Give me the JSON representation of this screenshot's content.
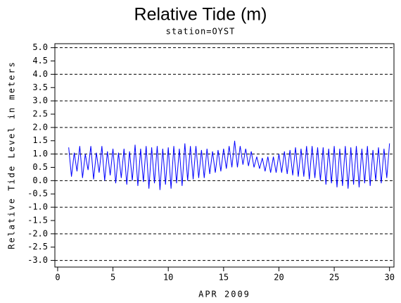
{
  "chart_data": {
    "type": "line",
    "title": "Relative Tide (m)",
    "subtitle": "station=OYST",
    "x_label": "APR 2009",
    "y_label": "Relative Tide Level in meters",
    "xlim": [
      -0.25,
      30.4
    ],
    "xticks": [
      0,
      5,
      10,
      15,
      20,
      25,
      30
    ],
    "ylim": [
      -3.25,
      5.15
    ],
    "yticks": [
      {
        "value": -3,
        "label": "-3.0"
      },
      -2.5,
      {
        "value": -2,
        "label": "-2.0"
      },
      -1.5,
      {
        "value": -1,
        "label": "-1.0"
      },
      -0.5,
      {
        "value": 0,
        "label": "0.0"
      },
      0.5,
      {
        "value": 1,
        "label": "1.0"
      },
      1.5,
      {
        "value": 2,
        "label": "2.0"
      },
      2.5,
      {
        "value": 3,
        "label": "3.0"
      },
      3.5,
      {
        "value": 4,
        "label": "4.0"
      },
      4.5,
      {
        "value": 5,
        "label": "5.0"
      }
    ],
    "grid": true,
    "x": [
      1,
      1.25,
      1.5,
      1.75,
      2,
      2.25,
      2.5,
      2.75,
      3,
      3.25,
      3.5,
      3.75,
      4,
      4.25,
      4.5,
      4.75,
      5,
      5.25,
      5.5,
      5.75,
      6,
      6.25,
      6.5,
      6.75,
      7,
      7.25,
      7.5,
      7.75,
      8,
      8.25,
      8.5,
      8.75,
      9,
      9.25,
      9.5,
      9.75,
      10,
      10.25,
      10.5,
      10.75,
      11,
      11.25,
      11.5,
      11.75,
      12,
      12.25,
      12.5,
      12.75,
      13,
      13.25,
      13.5,
      13.75,
      14,
      14.25,
      14.5,
      14.75,
      15,
      15.25,
      15.5,
      15.75,
      16,
      16.25,
      16.5,
      16.75,
      17,
      17.25,
      17.5,
      17.75,
      18,
      18.25,
      18.5,
      18.75,
      19,
      19.25,
      19.5,
      19.75,
      20,
      20.25,
      20.5,
      20.75,
      21,
      21.25,
      21.5,
      21.75,
      22,
      22.25,
      22.5,
      22.75,
      23,
      23.25,
      23.5,
      23.75,
      24,
      24.25,
      24.5,
      24.75,
      25,
      25.25,
      25.5,
      25.75,
      26,
      26.25,
      26.5,
      26.75,
      27,
      27.25,
      27.5,
      27.75,
      28,
      28.25,
      28.5,
      28.75,
      29,
      29.25,
      29.5,
      29.75,
      30
    ],
    "series": [
      {
        "color": "#0000ff",
        "values": [
          1.25,
          0.15,
          1.05,
          0.35,
          1.3,
          0.1,
          1.0,
          0.4,
          1.3,
          0.05,
          1.05,
          0.3,
          1.3,
          0.0,
          1.1,
          0.2,
          1.2,
          -0.1,
          1.05,
          0.1,
          1.2,
          -0.15,
          1.1,
          0.0,
          1.35,
          -0.2,
          1.2,
          -0.05,
          1.3,
          -0.3,
          1.25,
          -0.1,
          1.3,
          -0.35,
          1.2,
          -0.15,
          1.25,
          -0.3,
          1.3,
          -0.1,
          1.2,
          -0.2,
          1.4,
          0.0,
          1.3,
          0.05,
          1.3,
          0.1,
          1.15,
          0.1,
          1.2,
          0.25,
          1.1,
          0.3,
          1.15,
          0.35,
          1.2,
          0.45,
          1.3,
          0.5,
          1.5,
          0.5,
          1.3,
          0.6,
          1.2,
          0.55,
          1.1,
          0.5,
          0.9,
          0.45,
          0.85,
          0.35,
          0.9,
          0.3,
          0.9,
          0.3,
          1.0,
          0.3,
          1.1,
          0.25,
          1.15,
          0.2,
          1.25,
          0.15,
          1.2,
          0.15,
          1.3,
          0.05,
          1.3,
          0.1,
          1.25,
          0.0,
          1.25,
          -0.15,
          1.2,
          -0.1,
          1.3,
          -0.25,
          1.2,
          -0.2,
          1.3,
          -0.3,
          1.25,
          -0.15,
          1.3,
          -0.25,
          1.2,
          -0.1,
          1.3,
          -0.2,
          1.15,
          0.0,
          1.25,
          -0.1,
          1.2,
          0.1,
          1.4
        ]
      }
    ]
  }
}
